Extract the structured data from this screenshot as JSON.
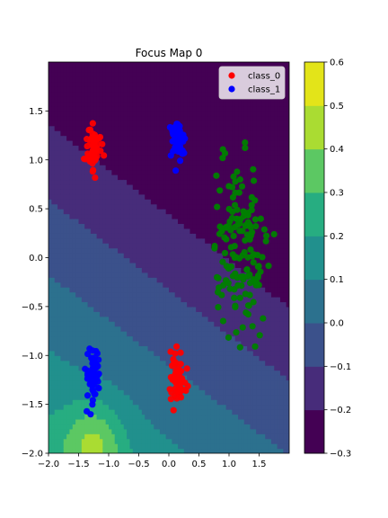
{
  "chart_data": {
    "type": "scatter",
    "title": "Focus Map 0",
    "xlabel": "",
    "ylabel": "",
    "xlim": [
      -2.0,
      2.0
    ],
    "ylim": [
      -2.0,
      2.0
    ],
    "x_ticks": [
      -2.0,
      -1.5,
      -1.0,
      -0.5,
      0.0,
      0.5,
      1.0,
      1.5
    ],
    "x_tick_labels": [
      "−2.0",
      "−1.5",
      "−1.0",
      "−0.5",
      "0.0",
      "0.5",
      "1.0",
      "1.5"
    ],
    "y_ticks": [
      -2.0,
      -1.5,
      -1.0,
      -0.5,
      0.0,
      0.5,
      1.0,
      1.5
    ],
    "y_tick_labels": [
      "−2.0",
      "−1.5",
      "−1.0",
      "−0.5",
      "0.0",
      "0.5",
      "1.0",
      "1.5"
    ],
    "grid": false,
    "legend_position": "top-right",
    "legend": [
      {
        "name": "class_0",
        "color": "#ff0000"
      },
      {
        "name": "class_1",
        "color": "#0000ff"
      }
    ],
    "series": [
      {
        "name": "class_0",
        "color": "#ff0000",
        "clusters": [
          {
            "cx": -1.25,
            "cy": 1.12,
            "sx": 0.06,
            "sy": 0.12,
            "n": 60
          },
          {
            "cx": 0.15,
            "cy": -1.2,
            "sx": 0.06,
            "sy": 0.13,
            "n": 60
          }
        ]
      },
      {
        "name": "class_1",
        "color": "#0000ff",
        "clusters": [
          {
            "cx": 0.15,
            "cy": 1.2,
            "sx": 0.06,
            "sy": 0.1,
            "n": 60
          },
          {
            "cx": -1.25,
            "cy": -1.2,
            "sx": 0.06,
            "sy": 0.13,
            "n": 60
          }
        ]
      },
      {
        "name": "",
        "color": "#008000",
        "clusters": [
          {
            "cx": 1.15,
            "cy": 0.05,
            "sx": 0.22,
            "sy": 0.45,
            "n": 150
          }
        ]
      }
    ],
    "contour": {
      "levels": [
        -0.3,
        -0.2,
        -0.1,
        0.0,
        0.1,
        0.2,
        0.3,
        0.4,
        0.5,
        0.6
      ],
      "colorbar_ticks": [
        -0.3,
        -0.2,
        -0.1,
        0.0,
        0.1,
        0.2,
        0.3,
        0.4,
        0.5,
        0.6
      ],
      "colorbar_tick_labels": [
        "−0.3",
        "−0.2",
        "−0.1",
        "0.0",
        "0.1",
        "0.2",
        "0.3",
        "0.4",
        "0.5",
        "0.6"
      ],
      "colors": [
        "#440154",
        "#472c7a",
        "#3b518b",
        "#2c718e",
        "#21908d",
        "#27ad81",
        "#5cc863",
        "#aadc32",
        "#e3e419"
      ]
    }
  }
}
